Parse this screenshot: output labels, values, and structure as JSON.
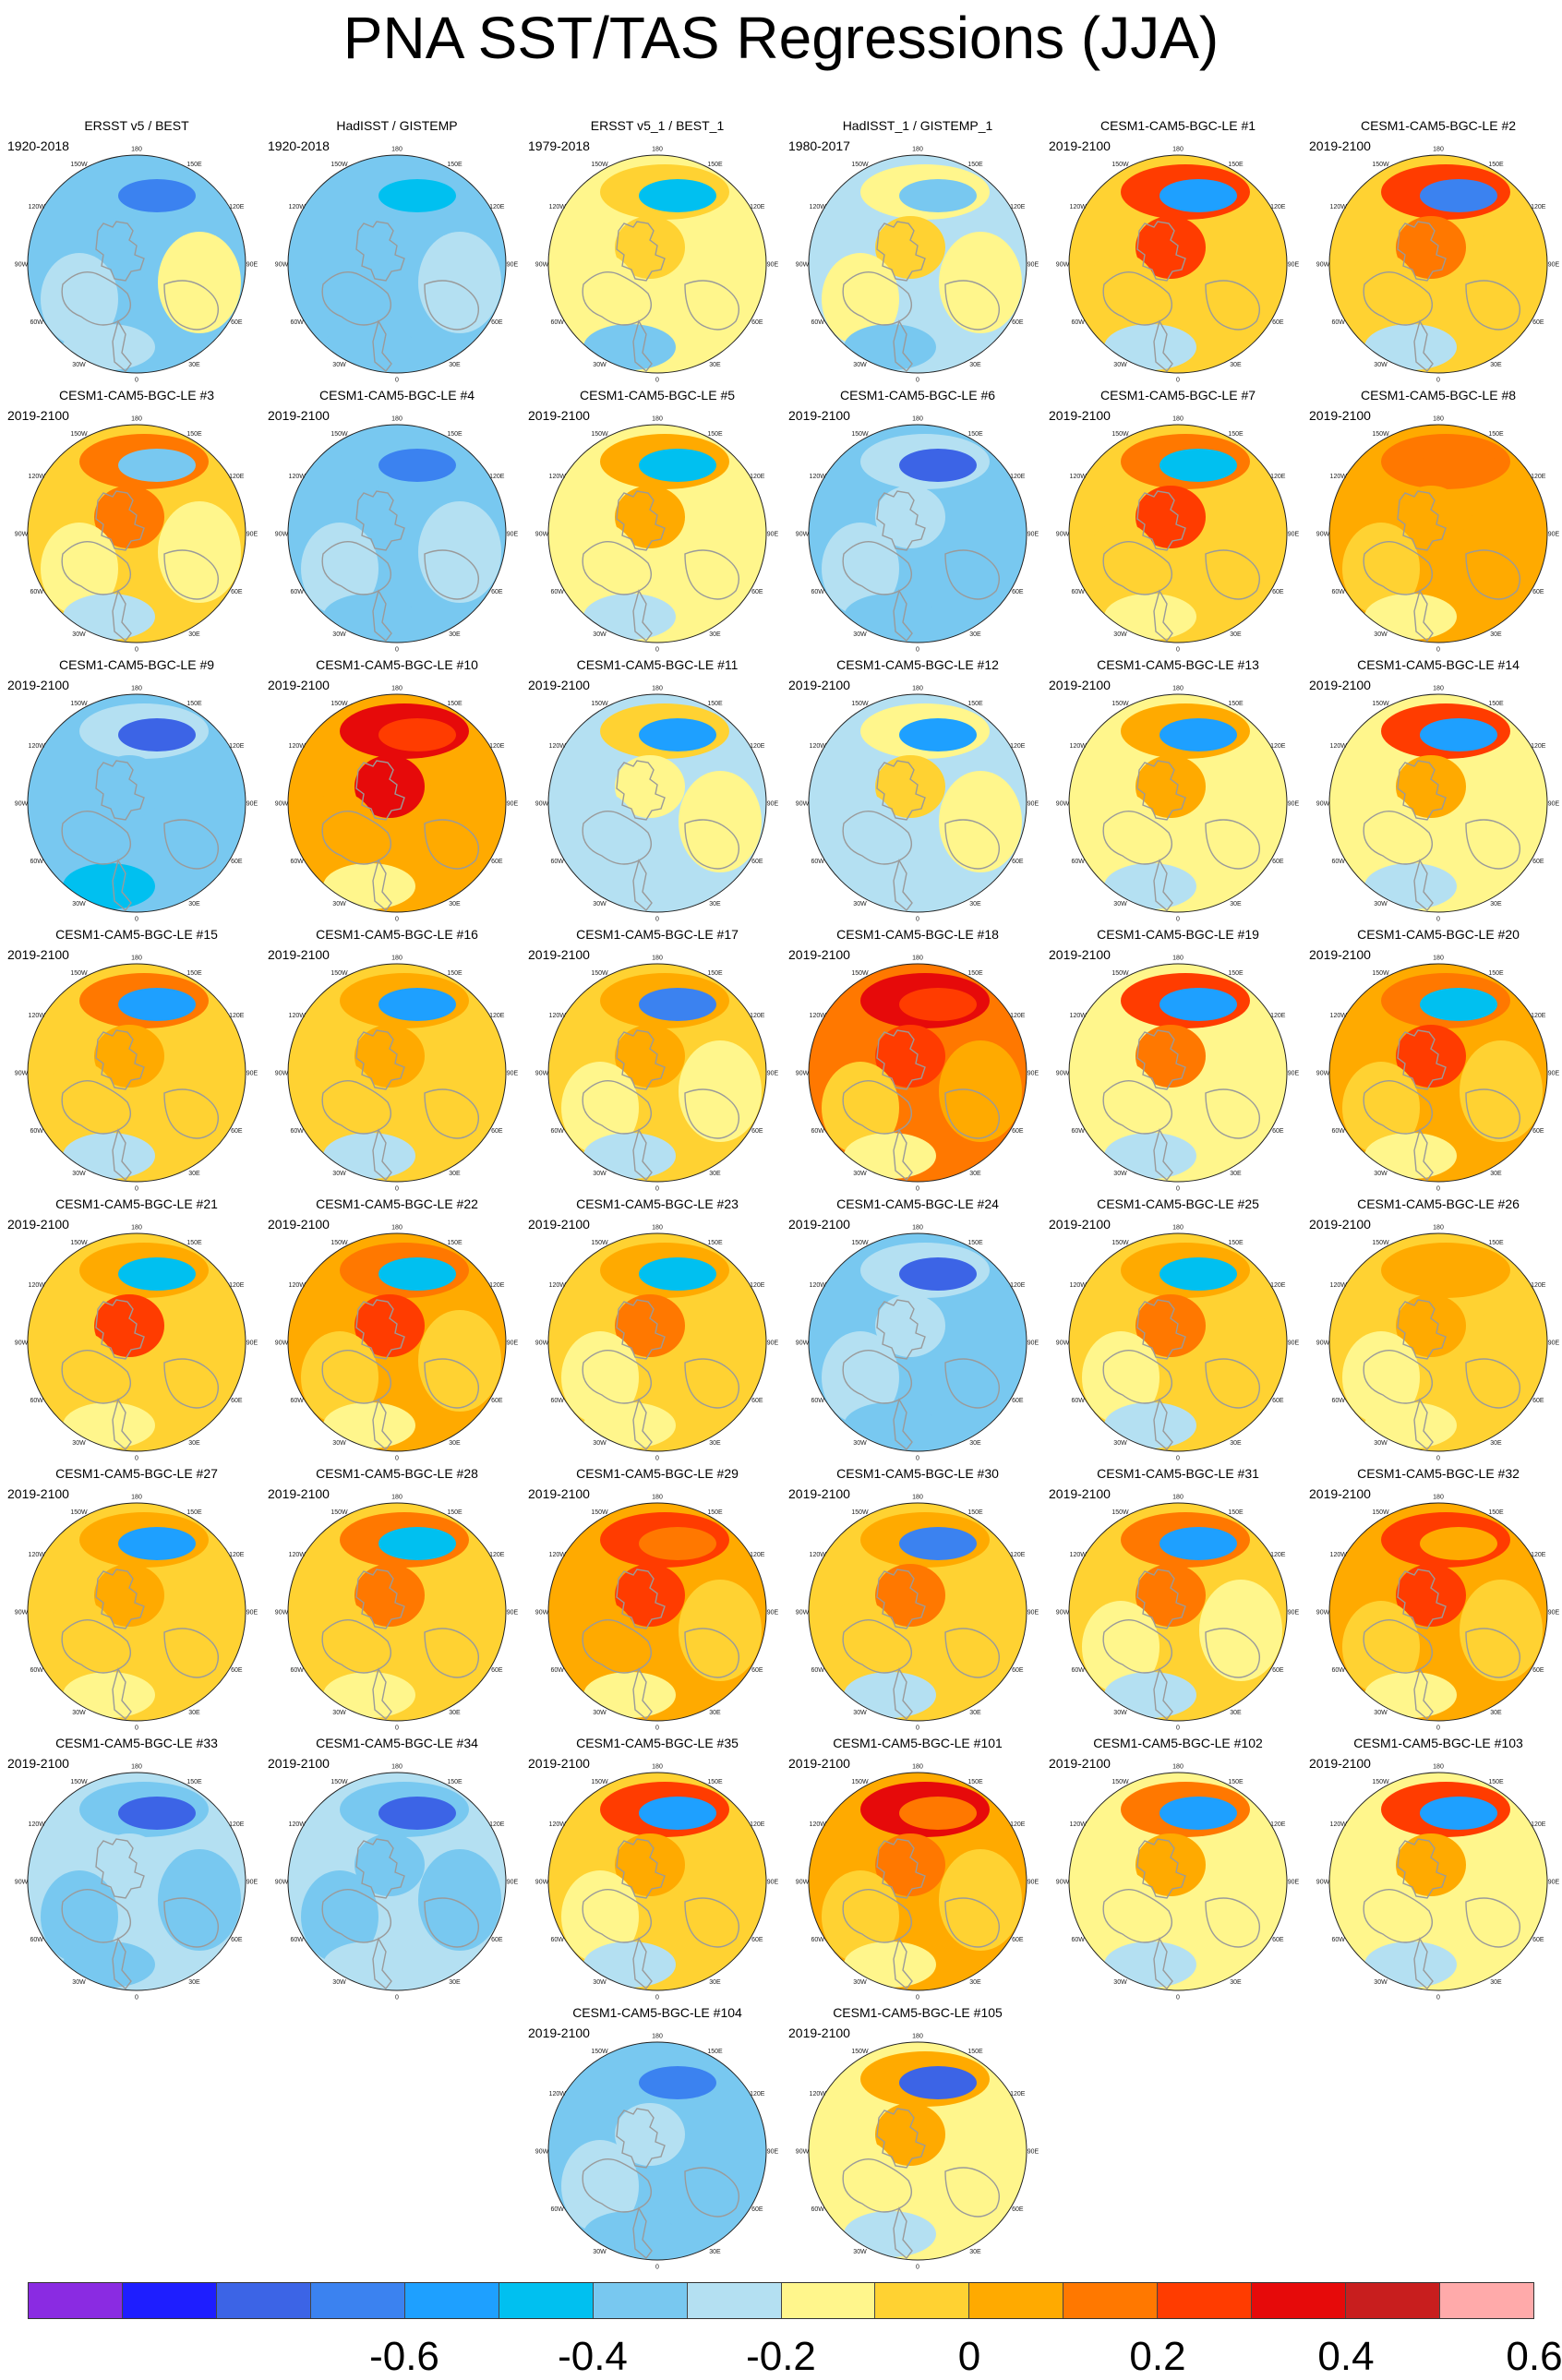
{
  "title": "PNA SST/TAS Regressions (JJA)",
  "colors": {
    "coast": "#9a9a9a",
    "scale": [
      "#8a2be2",
      "#1e1eff",
      "#3c64e6",
      "#3b82f0",
      "#1ea0ff",
      "#00c0f0",
      "#78c8f0",
      "#b4e0f2",
      "#fff68c",
      "#ffd232",
      "#ffaa00",
      "#ff7800",
      "#ff3c00",
      "#e60a0a",
      "#c81e1e",
      "#ffaaaa"
    ]
  },
  "degree_labels": [
    "180",
    "150E",
    "120E",
    "90E",
    "60E",
    "30E",
    "0",
    "30W",
    "60W",
    "90W",
    "120W",
    "150W"
  ],
  "colorbar": {
    "labels": [
      "-0.6",
      "-0.4",
      "-0.2",
      "0",
      "0.2",
      "0.4",
      "0.6"
    ],
    "boundaries": [
      4,
      6,
      8,
      10,
      12,
      14,
      16
    ],
    "segments": 16
  },
  "panels": [
    {
      "title": "ERSST v5 / BEST",
      "period": "1920-2018",
      "pattern": [
        -0.45,
        -0.15,
        -0.15,
        -0.1,
        0.05,
        -0.1,
        -0.15
      ]
    },
    {
      "title": "HadISST / GISTEMP",
      "period": "1920-2018",
      "pattern": [
        -0.3,
        -0.15,
        -0.2,
        -0.15,
        -0.1,
        -0.15,
        -0.15
      ]
    },
    {
      "title": "ERSST v5_1 / BEST_1",
      "period": "1979-2018",
      "pattern": [
        -0.25,
        0.1,
        0.1,
        0.05,
        0.05,
        -0.15,
        0.05
      ]
    },
    {
      "title": "HadISST_1 / GISTEMP_1",
      "period": "1980-2017",
      "pattern": [
        -0.2,
        0.05,
        0.1,
        0.05,
        0.05,
        -0.15,
        -0.1
      ]
    },
    {
      "title": "CESM1-CAM5-BGC-LE #1",
      "period": "2019-2100",
      "pattern": [
        -0.35,
        0.4,
        0.45,
        0.1,
        0.15,
        -0.1,
        0.1
      ]
    },
    {
      "title": "CESM1-CAM5-BGC-LE #2",
      "period": "2019-2100",
      "pattern": [
        -0.45,
        0.45,
        0.35,
        0.1,
        0.15,
        -0.1,
        0.1
      ]
    },
    {
      "title": "CESM1-CAM5-BGC-LE #3",
      "period": "2019-2100",
      "pattern": [
        -0.2,
        0.35,
        0.35,
        0.05,
        0.05,
        -0.1,
        0.1
      ]
    },
    {
      "title": "CESM1-CAM5-BGC-LE #4",
      "period": "2019-2100",
      "pattern": [
        -0.45,
        -0.15,
        -0.15,
        -0.1,
        -0.1,
        -0.2,
        -0.15
      ]
    },
    {
      "title": "CESM1-CAM5-BGC-LE #5",
      "period": "2019-2100",
      "pattern": [
        -0.3,
        0.3,
        0.25,
        0.05,
        0.05,
        -0.05,
        0.05
      ]
    },
    {
      "title": "CESM1-CAM5-BGC-LE #6",
      "period": "2019-2100",
      "pattern": [
        -0.55,
        -0.1,
        -0.1,
        -0.1,
        -0.15,
        -0.2,
        -0.15
      ]
    },
    {
      "title": "CESM1-CAM5-BGC-LE #7",
      "period": "2019-2100",
      "pattern": [
        -0.3,
        0.35,
        0.45,
        0.15,
        0.15,
        0.05,
        0.15
      ]
    },
    {
      "title": "CESM1-CAM5-BGC-LE #8",
      "period": "2019-2100",
      "pattern": [
        0.35,
        0.35,
        0.3,
        0.15,
        0.2,
        0.05,
        0.2
      ]
    },
    {
      "title": "CESM1-CAM5-BGC-LE #9",
      "period": "2019-2100",
      "pattern": [
        -0.6,
        -0.1,
        -0.15,
        -0.15,
        -0.15,
        -0.25,
        -0.15
      ]
    },
    {
      "title": "CESM1-CAM5-BGC-LE #10",
      "period": "2019-2100",
      "pattern": [
        0.45,
        0.55,
        0.5,
        0.2,
        0.25,
        0.05,
        0.3
      ]
    },
    {
      "title": "CESM1-CAM5-BGC-LE #11",
      "period": "2019-2100",
      "pattern": [
        -0.35,
        0.1,
        0.05,
        -0.05,
        0.05,
        -0.1,
        -0.05
      ]
    },
    {
      "title": "CESM1-CAM5-BGC-LE #12",
      "period": "2019-2100",
      "pattern": [
        -0.35,
        0.05,
        0.15,
        -0.05,
        0.05,
        -0.1,
        -0.05
      ]
    },
    {
      "title": "CESM1-CAM5-BGC-LE #13",
      "period": "2019-2100",
      "pattern": [
        -0.4,
        0.3,
        0.25,
        0.05,
        0.05,
        -0.1,
        0.05
      ]
    },
    {
      "title": "CESM1-CAM5-BGC-LE #14",
      "period": "2019-2100",
      "pattern": [
        -0.4,
        0.45,
        0.3,
        0.05,
        0.05,
        -0.1,
        0.05
      ]
    },
    {
      "title": "CESM1-CAM5-BGC-LE #15",
      "period": "2019-2100",
      "pattern": [
        -0.4,
        0.35,
        0.25,
        0.1,
        0.1,
        -0.05,
        0.15
      ]
    },
    {
      "title": "CESM1-CAM5-BGC-LE #16",
      "period": "2019-2100",
      "pattern": [
        -0.35,
        0.3,
        0.3,
        0.1,
        0.1,
        -0.05,
        0.1
      ]
    },
    {
      "title": "CESM1-CAM5-BGC-LE #17",
      "period": "2019-2100",
      "pattern": [
        -0.45,
        0.3,
        0.25,
        0.05,
        0.05,
        -0.1,
        0.1
      ]
    },
    {
      "title": "CESM1-CAM5-BGC-LE #18",
      "period": "2019-2100",
      "pattern": [
        0.45,
        0.55,
        0.45,
        0.1,
        0.2,
        0.05,
        0.35
      ]
    },
    {
      "title": "CESM1-CAM5-BGC-LE #19",
      "period": "2019-2100",
      "pattern": [
        -0.4,
        0.45,
        0.35,
        0.05,
        0.05,
        -0.1,
        0.05
      ]
    },
    {
      "title": "CESM1-CAM5-BGC-LE #20",
      "period": "2019-2100",
      "pattern": [
        -0.3,
        0.35,
        0.45,
        0.1,
        0.15,
        0.05,
        0.2
      ]
    },
    {
      "title": "CESM1-CAM5-BGC-LE #21",
      "period": "2019-2100",
      "pattern": [
        -0.3,
        0.3,
        0.45,
        0.1,
        0.1,
        0.05,
        0.1
      ]
    },
    {
      "title": "CESM1-CAM5-BGC-LE #22",
      "period": "2019-2100",
      "pattern": [
        -0.3,
        0.35,
        0.4,
        0.1,
        0.1,
        0.05,
        0.2
      ]
    },
    {
      "title": "CESM1-CAM5-BGC-LE #23",
      "period": "2019-2100",
      "pattern": [
        -0.3,
        0.3,
        0.35,
        0.05,
        0.1,
        0.05,
        0.1
      ]
    },
    {
      "title": "CESM1-CAM5-BGC-LE #24",
      "period": "2019-2100",
      "pattern": [
        -0.55,
        -0.1,
        -0.1,
        -0.1,
        -0.15,
        -0.2,
        -0.15
      ]
    },
    {
      "title": "CESM1-CAM5-BGC-LE #25",
      "period": "2019-2100",
      "pattern": [
        -0.3,
        0.3,
        0.35,
        0.05,
        0.1,
        -0.05,
        0.1
      ]
    },
    {
      "title": "CESM1-CAM5-BGC-LE #26",
      "period": "2019-2100",
      "pattern": [
        0.25,
        0.3,
        0.25,
        0.05,
        0.1,
        0.05,
        0.1
      ]
    },
    {
      "title": "CESM1-CAM5-BGC-LE #27",
      "period": "2019-2100",
      "pattern": [
        -0.35,
        0.3,
        0.3,
        0.1,
        0.1,
        0.05,
        0.1
      ]
    },
    {
      "title": "CESM1-CAM5-BGC-LE #28",
      "period": "2019-2100",
      "pattern": [
        -0.3,
        0.35,
        0.35,
        0.1,
        0.15,
        0.05,
        0.15
      ]
    },
    {
      "title": "CESM1-CAM5-BGC-LE #29",
      "period": "2019-2100",
      "pattern": [
        0.35,
        0.4,
        0.45,
        0.2,
        0.15,
        0.05,
        0.3
      ]
    },
    {
      "title": "CESM1-CAM5-BGC-LE #30",
      "period": "2019-2100",
      "pattern": [
        -0.45,
        0.3,
        0.35,
        0.1,
        0.1,
        -0.1,
        0.1
      ]
    },
    {
      "title": "CESM1-CAM5-BGC-LE #31",
      "period": "2019-2100",
      "pattern": [
        -0.4,
        0.35,
        0.35,
        0.05,
        0.05,
        -0.05,
        0.1
      ]
    },
    {
      "title": "CESM1-CAM5-BGC-LE #32",
      "period": "2019-2100",
      "pattern": [
        0.3,
        0.45,
        0.4,
        0.1,
        0.15,
        0.05,
        0.2
      ]
    },
    {
      "title": "CESM1-CAM5-BGC-LE #33",
      "period": "2019-2100",
      "pattern": [
        -0.6,
        -0.2,
        -0.1,
        -0.15,
        -0.15,
        -0.15,
        -0.1
      ]
    },
    {
      "title": "CESM1-CAM5-BGC-LE #34",
      "period": "2019-2100",
      "pattern": [
        -0.55,
        -0.15,
        -0.15,
        -0.2,
        -0.2,
        -0.1,
        -0.1
      ]
    },
    {
      "title": "CESM1-CAM5-BGC-LE #35",
      "period": "2019-2100",
      "pattern": [
        -0.4,
        0.4,
        0.3,
        0.05,
        0.1,
        -0.05,
        0.1
      ]
    },
    {
      "title": "CESM1-CAM5-BGC-LE #101",
      "period": "2019-2100",
      "pattern": [
        0.35,
        0.5,
        0.35,
        0.1,
        0.15,
        0.05,
        0.25
      ]
    },
    {
      "title": "CESM1-CAM5-BGC-LE #102",
      "period": "2019-2100",
      "pattern": [
        -0.4,
        0.35,
        0.3,
        0.05,
        0.05,
        -0.1,
        0.05
      ]
    },
    {
      "title": "CESM1-CAM5-BGC-LE #103",
      "period": "2019-2100",
      "pattern": [
        -0.4,
        0.4,
        0.3,
        0.05,
        0.05,
        -0.1,
        0.05
      ]
    },
    {
      "title": "CESM1-CAM5-BGC-LE #104",
      "period": "2019-2100",
      "pattern": [
        -0.5,
        -0.15,
        -0.1,
        -0.1,
        -0.15,
        -0.2,
        -0.15
      ]
    },
    {
      "title": "CESM1-CAM5-BGC-LE #105",
      "period": "2019-2100",
      "pattern": [
        -0.55,
        0.3,
        0.3,
        0.05,
        0.05,
        -0.1,
        0.05
      ]
    }
  ]
}
